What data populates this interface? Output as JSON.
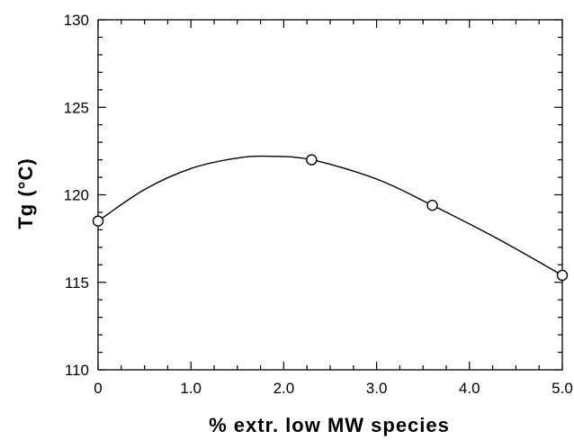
{
  "chart_data": {
    "type": "scatter",
    "title": "",
    "xlabel": "% extr. low MW species",
    "ylabel": "Tg (°C)",
    "xlim": [
      0,
      5
    ],
    "ylim": [
      110,
      130
    ],
    "grid": false,
    "x_tick_labels": [
      "0",
      "1.0",
      "2.0",
      "3.0",
      "4.0",
      "5.0"
    ],
    "x_tick_values": [
      0,
      1,
      2,
      3,
      4,
      5
    ],
    "y_tick_labels": [
      "110",
      "115",
      "120",
      "125",
      "130"
    ],
    "y_tick_values": [
      110,
      115,
      120,
      125,
      130
    ],
    "series": [
      {
        "marker": "open-circle",
        "x": [
          0,
          2.3,
          3.6,
          5.0
        ],
        "y": [
          118.5,
          122.0,
          119.4,
          115.4
        ]
      }
    ],
    "fit_curve": {
      "style": "smooth-line",
      "x": [
        0,
        0.5,
        1.0,
        1.5,
        1.85,
        2.3,
        3.0,
        3.6,
        4.3,
        5.0
      ],
      "y": [
        118.5,
        120.3,
        121.5,
        122.1,
        122.2,
        122.0,
        120.9,
        119.4,
        117.5,
        115.4
      ]
    }
  }
}
